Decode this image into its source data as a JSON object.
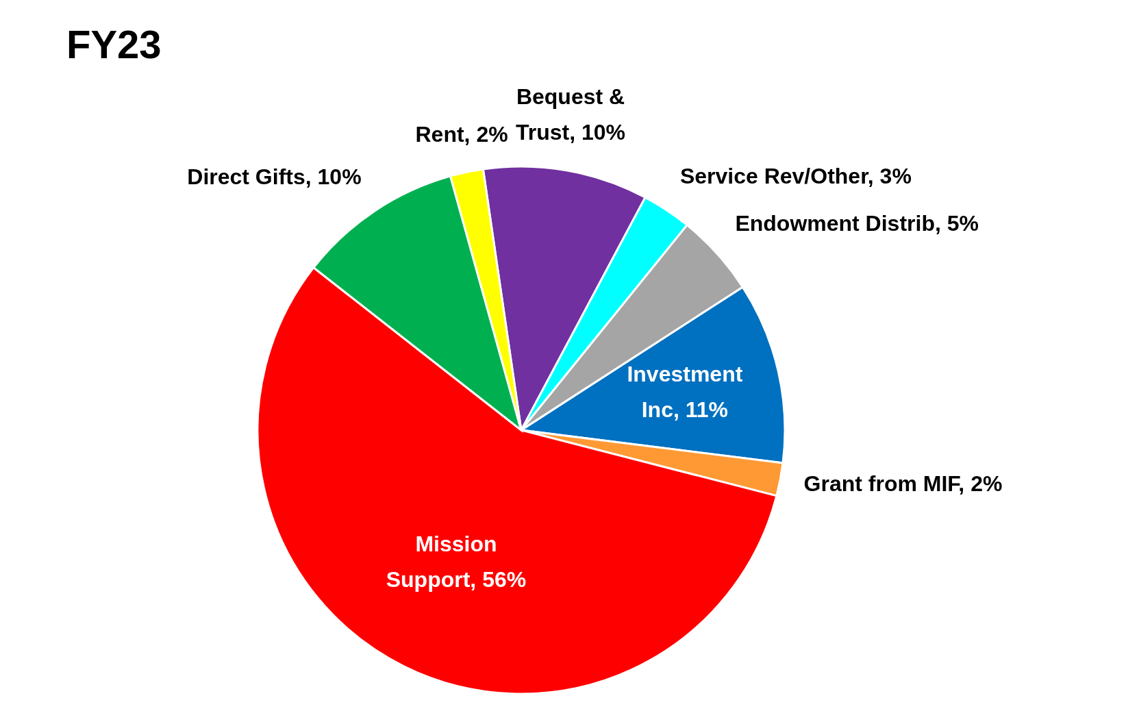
{
  "chart_data": {
    "type": "pie",
    "title": "FY23",
    "categories": [
      "Bequest & Trust",
      "Service Rev/Other",
      "Endowment Distrib",
      "Investment Inc",
      "Grant from MIF",
      "Mission Support",
      "Direct Gifts",
      "Rent"
    ],
    "values": [
      10,
      3,
      5,
      11,
      2,
      56,
      10,
      2
    ],
    "value_labels": [
      "10%",
      "3%",
      "5%",
      "11%",
      "2%",
      "56%",
      "10%",
      "2%"
    ],
    "colors": [
      "#7030a0",
      "#00ffff",
      "#a5a5a5",
      "#0070c0",
      "#ff9933",
      "#ff0000",
      "#00b050",
      "#ffff00"
    ]
  }
}
